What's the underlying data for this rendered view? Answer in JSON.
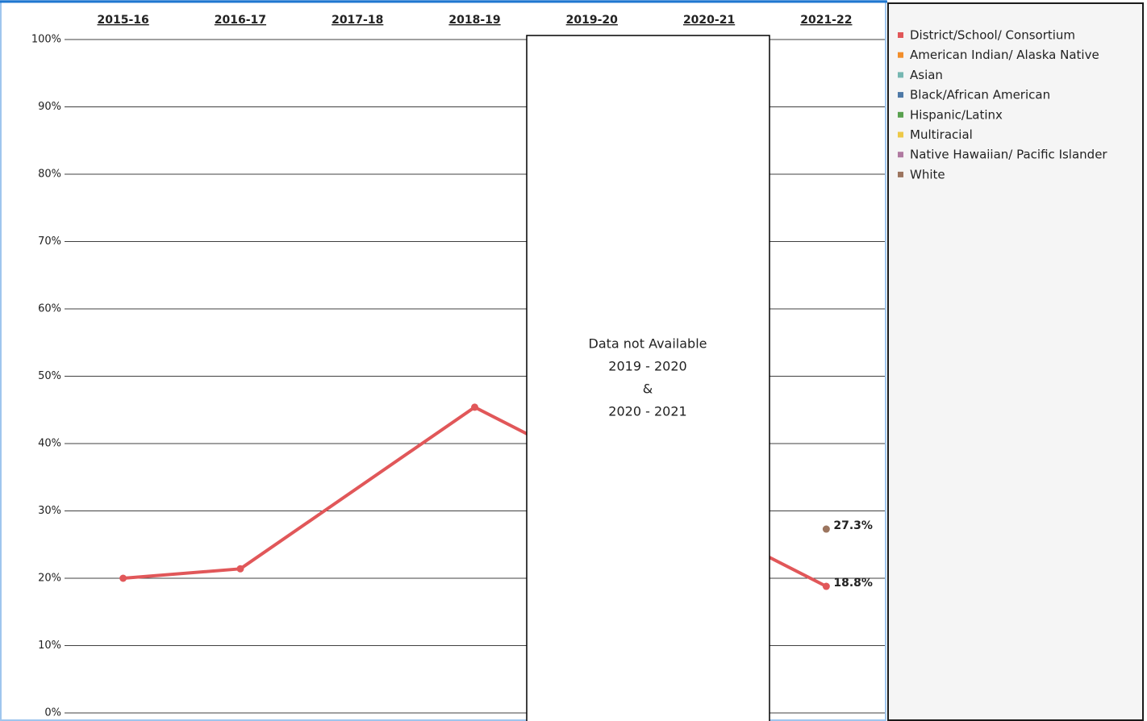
{
  "chart_data": {
    "type": "line",
    "categories": [
      "2015-16",
      "2016-17",
      "2017-18",
      "2018-19",
      "2019-20",
      "2020-21",
      "2021-22"
    ],
    "series": [
      {
        "name": "District/School/ Consortium",
        "color": "#e15759",
        "values": [
          20,
          21.4,
          null,
          45.4,
          null,
          null,
          18.8
        ],
        "value_labels": [
          null,
          null,
          null,
          null,
          null,
          null,
          "18.8%"
        ]
      },
      {
        "name": "American Indian/ Alaska Native",
        "color": "#f28e2b",
        "values": [
          null,
          null,
          null,
          null,
          null,
          null,
          null
        ]
      },
      {
        "name": "Asian",
        "color": "#76b7b2",
        "values": [
          null,
          null,
          null,
          null,
          null,
          null,
          null
        ]
      },
      {
        "name": "Black/African American",
        "color": "#4e79a7",
        "values": [
          null,
          null,
          null,
          null,
          null,
          null,
          null
        ]
      },
      {
        "name": "Hispanic/Latinx",
        "color": "#59a14f",
        "values": [
          null,
          null,
          null,
          null,
          null,
          null,
          null
        ]
      },
      {
        "name": "Multiracial",
        "color": "#edc948",
        "values": [
          null,
          null,
          null,
          null,
          null,
          null,
          null
        ]
      },
      {
        "name": "Native Hawaiian/ Pacific Islander",
        "color": "#b07aa1",
        "values": [
          null,
          null,
          null,
          null,
          null,
          null,
          null
        ]
      },
      {
        "name": "White",
        "color": "#9c755f",
        "values": [
          null,
          null,
          null,
          null,
          null,
          null,
          27.3
        ],
        "value_labels": [
          null,
          null,
          null,
          null,
          null,
          null,
          "27.3%"
        ]
      }
    ],
    "ylim": [
      0,
      100
    ],
    "yticks": [
      {
        "value": 0,
        "label": "0%"
      },
      {
        "value": 10,
        "label": "10%"
      },
      {
        "value": 20,
        "label": "20%"
      },
      {
        "value": 30,
        "label": "30%"
      },
      {
        "value": 40,
        "label": "40%"
      },
      {
        "value": 50,
        "label": "50%"
      },
      {
        "value": 60,
        "label": "60%"
      },
      {
        "value": 70,
        "label": "70%"
      },
      {
        "value": 80,
        "label": "80%"
      },
      {
        "value": 90,
        "label": "90%"
      },
      {
        "value": 100,
        "label": "100%"
      }
    ],
    "grid": true,
    "annotation": [
      "Data not Available",
      "2019 - 2020",
      "&",
      "2020 - 2021"
    ]
  }
}
